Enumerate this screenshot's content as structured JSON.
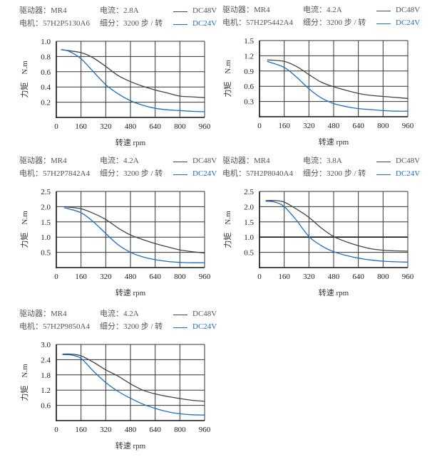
{
  "colors": {
    "dc48v": "#444444",
    "dc24v": "#1a6fc4",
    "grid": "#333333"
  },
  "panels": [
    {
      "driver": "驱动器：MR4",
      "current": "电流：2.8A",
      "motor": "电机：57H2P5130A6",
      "microstep": "细分：3200 步 / 转",
      "chart_data": {
        "type": "line",
        "xlabel": "转速  rpm",
        "ylabel": "力矩    N.m",
        "xlim": [
          0,
          960
        ],
        "ylim": [
          0,
          1.0
        ],
        "xticks": [
          "0",
          "160",
          "320",
          "480",
          "640",
          "800",
          "960"
        ],
        "yticks": [
          "0.2",
          "0.4",
          "0.6",
          "0.8",
          "1.0"
        ],
        "grid": true,
        "legend": "top-right",
        "series": [
          {
            "name": "DC48V",
            "x": [
              30,
              160,
              240,
              320,
              400,
              480,
              560,
              640,
              720,
              800,
              880,
              960
            ],
            "y": [
              0.89,
              0.85,
              0.78,
              0.67,
              0.55,
              0.47,
              0.41,
              0.36,
              0.32,
              0.28,
              0.27,
              0.26
            ]
          },
          {
            "name": "DC24V",
            "x": [
              30,
              80,
              160,
              240,
              320,
              400,
              480,
              560,
              640,
              720,
              800,
              880,
              960
            ],
            "y": [
              0.89,
              0.87,
              0.77,
              0.6,
              0.43,
              0.31,
              0.22,
              0.16,
              0.12,
              0.1,
              0.09,
              0.08,
              0.075
            ]
          }
        ]
      }
    },
    {
      "driver": "驱动器：MR4",
      "current": "电流：4.2A",
      "motor": "电机：57H2P5442A4",
      "microstep": "细分：3200 步 / 转",
      "chart_data": {
        "type": "line",
        "xlabel": "转速  rpm",
        "ylabel": "力矩    N.m",
        "xlim": [
          0,
          960
        ],
        "ylim": [
          0,
          1.5
        ],
        "xticks": [
          "0",
          "160",
          "320",
          "480",
          "640",
          "800",
          "960"
        ],
        "yticks": [
          "0.3",
          "0.6",
          "0.9",
          "1.2",
          "1.5"
        ],
        "grid": true,
        "legend": "top-right",
        "series": [
          {
            "name": "DC48V",
            "x": [
              50,
              160,
              240,
              320,
              400,
              480,
              560,
              640,
              720,
              800,
              880,
              960
            ],
            "y": [
              1.12,
              1.09,
              0.99,
              0.83,
              0.68,
              0.59,
              0.52,
              0.46,
              0.42,
              0.4,
              0.38,
              0.36
            ]
          },
          {
            "name": "DC24V",
            "x": [
              50,
              160,
              240,
              320,
              400,
              480,
              560,
              640,
              720,
              800,
              880,
              960
            ],
            "y": [
              1.09,
              0.97,
              0.78,
              0.55,
              0.37,
              0.26,
              0.2,
              0.16,
              0.14,
              0.12,
              0.11,
              0.11
            ]
          }
        ]
      }
    },
    {
      "driver": "驱动器：MR4",
      "current": "电流：4.2A",
      "motor": "电机：57H2P7842A4",
      "microstep": "细分：3200 步 / 转",
      "chart_data": {
        "type": "line",
        "xlabel": "转速  rpm",
        "ylabel": "力矩    N.m",
        "xlim": [
          0,
          960
        ],
        "ylim": [
          0,
          2.5
        ],
        "xticks": [
          "0",
          "160",
          "320",
          "480",
          "640",
          "800",
          "960"
        ],
        "yticks": [
          "0.5",
          "1.0",
          "1.5",
          "2.0",
          "2.5"
        ],
        "grid": true,
        "legend": "top-right",
        "series": [
          {
            "name": "DC48V",
            "x": [
              50,
              160,
              240,
              320,
              400,
              480,
              560,
              640,
              720,
              800,
              880,
              960
            ],
            "y": [
              2.0,
              1.93,
              1.78,
              1.58,
              1.3,
              1.07,
              0.92,
              0.79,
              0.68,
              0.58,
              0.52,
              0.48
            ]
          },
          {
            "name": "DC24V",
            "x": [
              50,
              160,
              240,
              320,
              400,
              480,
              560,
              640,
              720,
              800,
              880,
              960
            ],
            "y": [
              1.97,
              1.8,
              1.5,
              1.12,
              0.75,
              0.5,
              0.35,
              0.26,
              0.2,
              0.17,
              0.16,
              0.16
            ]
          }
        ]
      }
    },
    {
      "driver": "驱动器：MR4",
      "current": "电流：3.8A",
      "motor": "电机：57H2P8040A4",
      "microstep": "细分：3200 步 / 转",
      "chart_data": {
        "type": "line",
        "xlabel": "转速  rpm",
        "ylabel": "力矩    N.m",
        "xlim": [
          0,
          960
        ],
        "ylim": [
          0,
          2.5
        ],
        "xticks": [
          "0",
          "160",
          "320",
          "480",
          "640",
          "800",
          "960"
        ],
        "yticks": [
          "0.5",
          "1.0",
          "1.5",
          "2.0",
          "2.5"
        ],
        "grid": true,
        "legend": "top-right",
        "series": [
          {
            "name": "DC48V",
            "x": [
              40,
              100,
              160,
              240,
              320,
              400,
              480,
              560,
              640,
              720,
              800,
              880,
              960
            ],
            "y": [
              2.2,
              2.2,
              2.15,
              1.92,
              1.65,
              1.3,
              1.02,
              0.85,
              0.72,
              0.62,
              0.57,
              0.55,
              0.54
            ]
          },
          {
            "name": "DC24V",
            "x": [
              40,
              100,
              160,
              240,
              320,
              400,
              480,
              560,
              640,
              720,
              800,
              880,
              960
            ],
            "y": [
              2.18,
              2.15,
              2.0,
              1.55,
              1.02,
              0.72,
              0.52,
              0.4,
              0.31,
              0.25,
              0.21,
              0.19,
              0.18
            ]
          }
        ]
      }
    },
    {
      "driver": "驱动器：MR4",
      "current": "电流：4.2A",
      "motor": "电机：57H2P9850A4",
      "microstep": "细分：3200 步 / 转",
      "chart_data": {
        "type": "line",
        "xlabel": "转速  rpm",
        "ylabel": "力矩    N.m",
        "xlim": [
          0,
          960
        ],
        "ylim": [
          0,
          3.0
        ],
        "xticks": [
          "0",
          "160",
          "320",
          "480",
          "640",
          "800",
          "960"
        ],
        "yticks": [
          "0.6",
          "1.2",
          "1.8",
          "2.4",
          "3.0"
        ],
        "grid": true,
        "legend": "top-right",
        "series": [
          {
            "name": "DC48V",
            "x": [
              40,
              100,
              160,
              240,
              320,
              400,
              480,
              560,
              640,
              720,
              800,
              880,
              960
            ],
            "y": [
              2.62,
              2.62,
              2.55,
              2.3,
              2.0,
              1.75,
              1.45,
              1.2,
              1.05,
              0.95,
              0.87,
              0.8,
              0.76
            ]
          },
          {
            "name": "DC24V",
            "x": [
              40,
              100,
              160,
              240,
              320,
              400,
              480,
              560,
              640,
              720,
              800,
              880,
              960
            ],
            "y": [
              2.6,
              2.58,
              2.45,
              1.95,
              1.5,
              1.15,
              0.88,
              0.65,
              0.48,
              0.35,
              0.27,
              0.23,
              0.22
            ]
          }
        ]
      }
    }
  ]
}
